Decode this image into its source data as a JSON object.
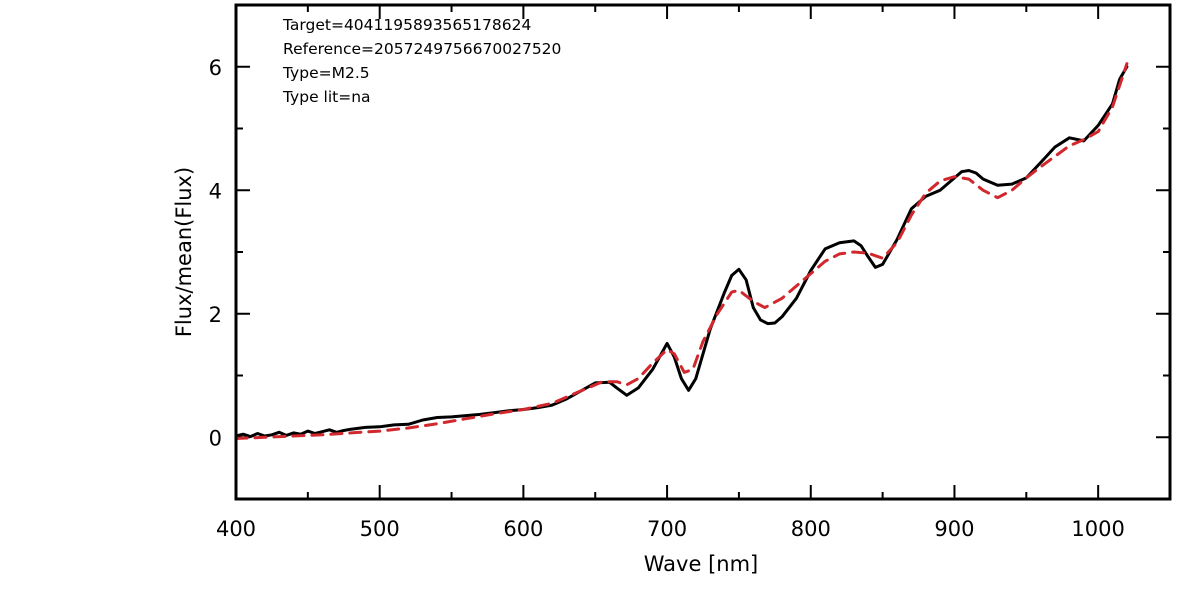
{
  "chart_data": {
    "type": "line",
    "title": "",
    "xlabel": "Wave [nm]",
    "ylabel": "Flux/mean(Flux)",
    "xlim": [
      400,
      1050
    ],
    "ylim": [
      -1,
      7
    ],
    "x_ticks": [
      400,
      500,
      600,
      700,
      800,
      900,
      1000
    ],
    "y_ticks": [
      0,
      2,
      4,
      6
    ],
    "grid": false,
    "legend": "none",
    "annotations": [
      "Target=4041195893565178624",
      "Reference=2057249756670027520",
      "Type=M2.5",
      "Type lit=na"
    ],
    "series": [
      {
        "color": "#000000",
        "style": "solid",
        "points": [
          [
            400,
            0.02
          ],
          [
            405,
            0.05
          ],
          [
            410,
            0.01
          ],
          [
            415,
            0.06
          ],
          [
            420,
            0.02
          ],
          [
            425,
            0.04
          ],
          [
            430,
            0.08
          ],
          [
            435,
            0.03
          ],
          [
            440,
            0.07
          ],
          [
            445,
            0.05
          ],
          [
            450,
            0.1
          ],
          [
            455,
            0.06
          ],
          [
            460,
            0.09
          ],
          [
            465,
            0.12
          ],
          [
            470,
            0.08
          ],
          [
            475,
            0.11
          ],
          [
            480,
            0.13
          ],
          [
            490,
            0.16
          ],
          [
            500,
            0.17
          ],
          [
            510,
            0.2
          ],
          [
            520,
            0.21
          ],
          [
            530,
            0.28
          ],
          [
            540,
            0.32
          ],
          [
            550,
            0.33
          ],
          [
            560,
            0.35
          ],
          [
            570,
            0.37
          ],
          [
            580,
            0.4
          ],
          [
            590,
            0.43
          ],
          [
            600,
            0.45
          ],
          [
            610,
            0.48
          ],
          [
            620,
            0.52
          ],
          [
            630,
            0.62
          ],
          [
            640,
            0.75
          ],
          [
            650,
            0.88
          ],
          [
            660,
            0.89
          ],
          [
            665,
            0.8
          ],
          [
            672,
            0.68
          ],
          [
            680,
            0.8
          ],
          [
            690,
            1.1
          ],
          [
            700,
            1.52
          ],
          [
            705,
            1.3
          ],
          [
            710,
            0.95
          ],
          [
            715,
            0.76
          ],
          [
            720,
            0.95
          ],
          [
            730,
            1.75
          ],
          [
            740,
            2.35
          ],
          [
            745,
            2.62
          ],
          [
            750,
            2.72
          ],
          [
            755,
            2.55
          ],
          [
            760,
            2.1
          ],
          [
            765,
            1.9
          ],
          [
            770,
            1.84
          ],
          [
            775,
            1.85
          ],
          [
            780,
            1.95
          ],
          [
            790,
            2.25
          ],
          [
            800,
            2.7
          ],
          [
            810,
            3.05
          ],
          [
            820,
            3.15
          ],
          [
            830,
            3.18
          ],
          [
            835,
            3.1
          ],
          [
            840,
            2.92
          ],
          [
            845,
            2.75
          ],
          [
            850,
            2.8
          ],
          [
            860,
            3.2
          ],
          [
            870,
            3.7
          ],
          [
            880,
            3.9
          ],
          [
            890,
            4.0
          ],
          [
            900,
            4.2
          ],
          [
            905,
            4.3
          ],
          [
            910,
            4.32
          ],
          [
            915,
            4.28
          ],
          [
            920,
            4.18
          ],
          [
            930,
            4.08
          ],
          [
            940,
            4.1
          ],
          [
            950,
            4.2
          ],
          [
            960,
            4.45
          ],
          [
            970,
            4.7
          ],
          [
            980,
            4.85
          ],
          [
            990,
            4.8
          ],
          [
            1000,
            5.05
          ],
          [
            1010,
            5.4
          ],
          [
            1015,
            5.8
          ],
          [
            1020,
            6.0
          ]
        ]
      },
      {
        "color": "#d1282e",
        "style": "dashed",
        "points": [
          [
            400,
            -0.02
          ],
          [
            420,
            0.0
          ],
          [
            440,
            0.02
          ],
          [
            460,
            0.04
          ],
          [
            480,
            0.07
          ],
          [
            500,
            0.1
          ],
          [
            520,
            0.15
          ],
          [
            540,
            0.22
          ],
          [
            560,
            0.3
          ],
          [
            580,
            0.38
          ],
          [
            600,
            0.45
          ],
          [
            620,
            0.55
          ],
          [
            640,
            0.75
          ],
          [
            655,
            0.9
          ],
          [
            665,
            0.9
          ],
          [
            672,
            0.85
          ],
          [
            680,
            0.95
          ],
          [
            690,
            1.2
          ],
          [
            700,
            1.42
          ],
          [
            705,
            1.35
          ],
          [
            712,
            1.05
          ],
          [
            718,
            1.1
          ],
          [
            725,
            1.55
          ],
          [
            735,
            2.0
          ],
          [
            745,
            2.35
          ],
          [
            750,
            2.38
          ],
          [
            760,
            2.2
          ],
          [
            768,
            2.1
          ],
          [
            780,
            2.25
          ],
          [
            790,
            2.45
          ],
          [
            800,
            2.65
          ],
          [
            810,
            2.85
          ],
          [
            820,
            2.97
          ],
          [
            830,
            3.0
          ],
          [
            840,
            2.98
          ],
          [
            850,
            2.9
          ],
          [
            860,
            3.15
          ],
          [
            870,
            3.6
          ],
          [
            880,
            3.95
          ],
          [
            890,
            4.15
          ],
          [
            900,
            4.22
          ],
          [
            905,
            4.2
          ],
          [
            910,
            4.18
          ],
          [
            920,
            4.0
          ],
          [
            930,
            3.88
          ],
          [
            940,
            4.0
          ],
          [
            950,
            4.2
          ],
          [
            960,
            4.38
          ],
          [
            970,
            4.55
          ],
          [
            980,
            4.72
          ],
          [
            990,
            4.82
          ],
          [
            1000,
            4.95
          ],
          [
            1010,
            5.35
          ],
          [
            1020,
            6.05
          ]
        ]
      }
    ]
  }
}
